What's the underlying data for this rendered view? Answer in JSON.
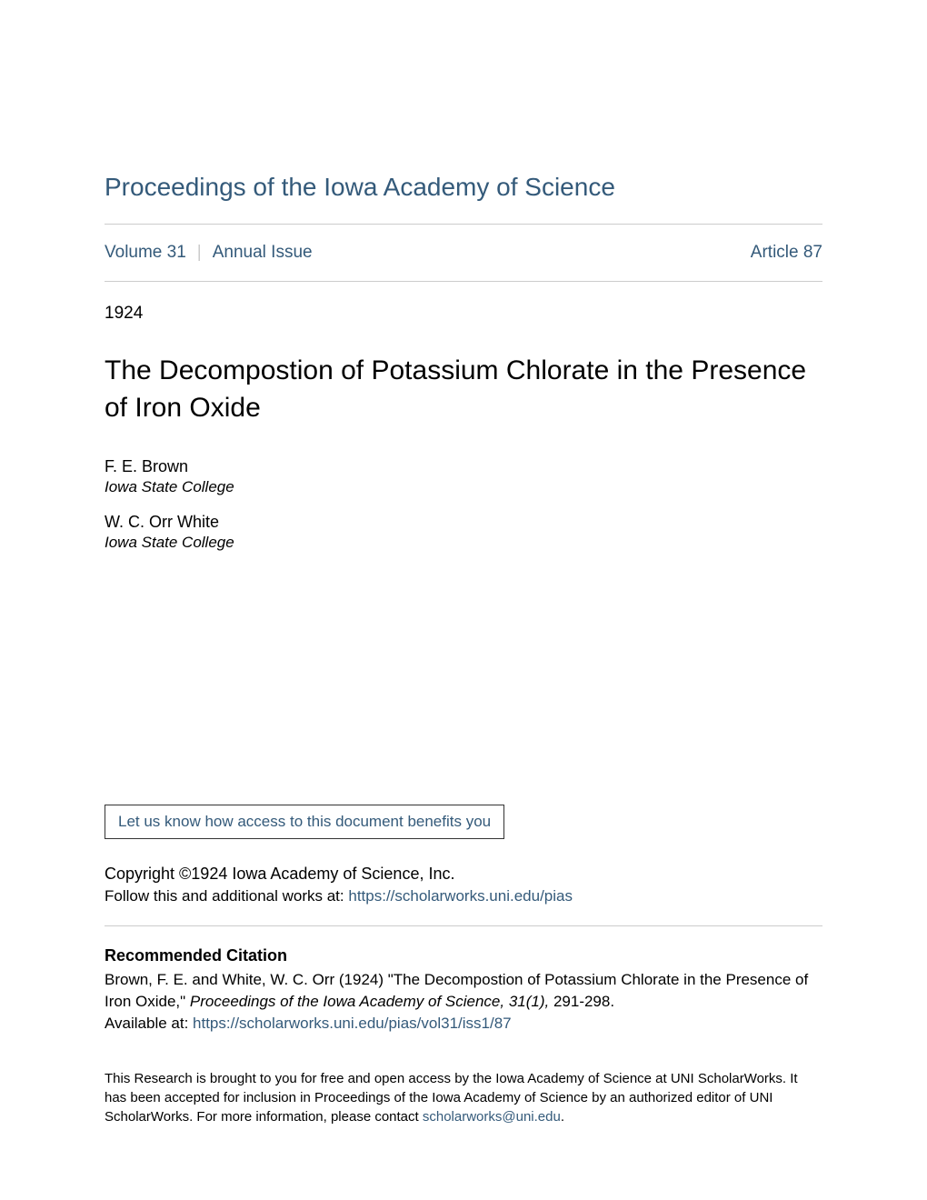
{
  "journal": {
    "title": "Proceedings of the Iowa Academy of Science",
    "volume": "Volume 31",
    "issue": "Annual Issue",
    "article": "Article 87"
  },
  "year": "1924",
  "article_title": "The Decompostion of Potassium Chlorate in the Presence of Iron Oxide",
  "authors": [
    {
      "name": "F. E. Brown",
      "affiliation": "Iowa State College"
    },
    {
      "name": "W. C. Orr White",
      "affiliation": "Iowa State College"
    }
  ],
  "benefit_link": "Let us know how access to this document benefits you",
  "copyright": "Copyright ©1924 Iowa Academy of Science, Inc.",
  "follow_text": "Follow this and additional works at: ",
  "follow_url": "https://scholarworks.uni.edu/pias",
  "citation": {
    "heading": "Recommended Citation",
    "text_before": "Brown, F. E. and White, W. C. Orr (1924) \"The Decompostion of Potassium Chlorate in the Presence of Iron Oxide,\" ",
    "journal_italic": "Proceedings of the Iowa Academy of Science, 31(1),",
    "text_after": " 291-298.",
    "available_label": "Available at: ",
    "available_url": "https://scholarworks.uni.edu/pias/vol31/iss1/87"
  },
  "footer": {
    "text_before": "This Research is brought to you for free and open access by the Iowa Academy of Science at UNI ScholarWorks. It has been accepted for inclusion in Proceedings of the Iowa Academy of Science by an authorized editor of UNI ScholarWorks. For more information, please contact ",
    "email": "scholarworks@uni.edu",
    "text_after": "."
  },
  "colors": {
    "link": "#345a7a",
    "text": "#000000",
    "divider": "#cccccc",
    "background": "#ffffff"
  }
}
